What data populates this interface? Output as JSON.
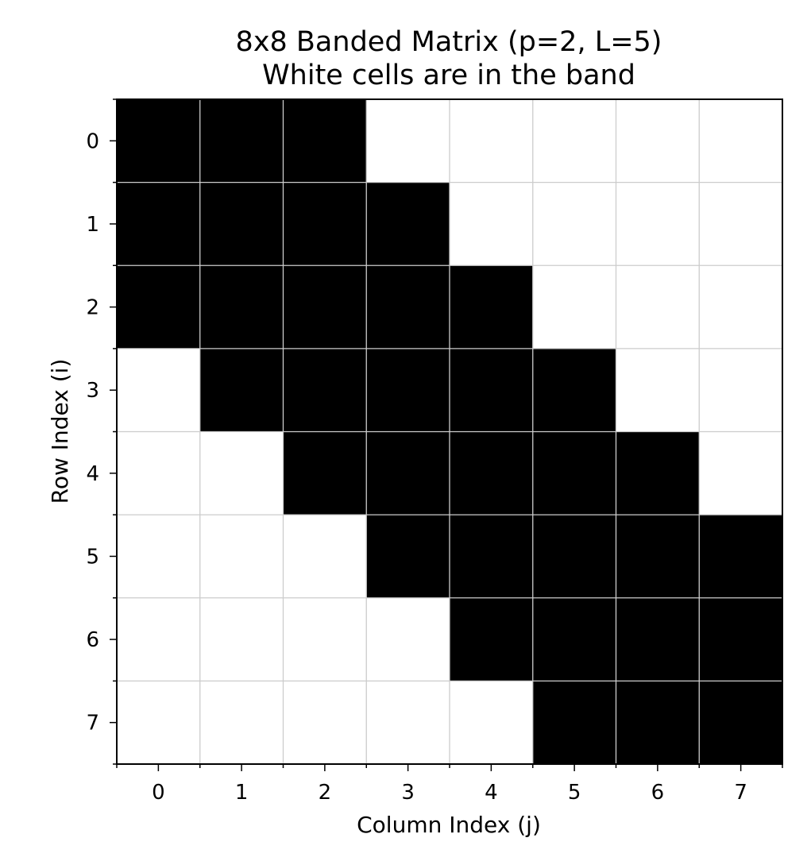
{
  "chart_data": {
    "type": "heatmap",
    "title_lines": [
      "8x8 Banded Matrix (p=2, L=5)",
      "White cells are in the band"
    ],
    "xlabel": "Column Index (j)",
    "ylabel": "Row Index (i)",
    "x_ticks": [
      "0",
      "1",
      "2",
      "3",
      "4",
      "5",
      "6",
      "7"
    ],
    "y_ticks": [
      "0",
      "1",
      "2",
      "3",
      "4",
      "5",
      "6",
      "7"
    ],
    "values": [
      [
        1,
        1,
        1,
        0,
        0,
        0,
        0,
        0
      ],
      [
        1,
        1,
        1,
        1,
        0,
        0,
        0,
        0
      ],
      [
        1,
        1,
        1,
        1,
        1,
        0,
        0,
        0
      ],
      [
        0,
        1,
        1,
        1,
        1,
        1,
        0,
        0
      ],
      [
        0,
        0,
        1,
        1,
        1,
        1,
        1,
        0
      ],
      [
        0,
        0,
        0,
        1,
        1,
        1,
        1,
        1
      ],
      [
        0,
        0,
        0,
        0,
        1,
        1,
        1,
        1
      ],
      [
        0,
        0,
        0,
        0,
        0,
        1,
        1,
        1
      ]
    ],
    "colors": {
      "filled": "#000000",
      "empty": "#ffffff",
      "grid": "#cccccc"
    },
    "grid": true
  }
}
